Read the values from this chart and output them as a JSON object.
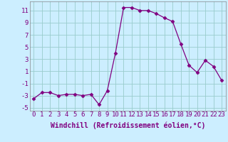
{
  "x": [
    0,
    1,
    2,
    3,
    4,
    5,
    6,
    7,
    8,
    9,
    10,
    11,
    12,
    13,
    14,
    15,
    16,
    17,
    18,
    19,
    20,
    21,
    22,
    23
  ],
  "y": [
    -3.5,
    -2.5,
    -2.5,
    -3.0,
    -2.8,
    -2.8,
    -3.0,
    -2.8,
    -4.5,
    -2.2,
    4.0,
    11.5,
    11.5,
    11.0,
    11.0,
    10.5,
    9.8,
    9.2,
    5.5,
    2.0,
    0.8,
    2.8,
    1.8,
    -0.5
  ],
  "line_color": "#800080",
  "marker": "D",
  "marker_size": 2.5,
  "background_color": "#cceeff",
  "grid_color": "#99cccc",
  "xlabel": "Windchill (Refroidissement éolien,°C)",
  "xlabel_fontsize": 7,
  "tick_fontsize": 6.5,
  "xlim": [
    -0.5,
    23.5
  ],
  "ylim": [
    -5.5,
    12.5
  ],
  "yticks": [
    -5,
    -3,
    -1,
    1,
    3,
    5,
    7,
    9,
    11
  ],
  "xticks": [
    0,
    1,
    2,
    3,
    4,
    5,
    6,
    7,
    8,
    9,
    10,
    11,
    12,
    13,
    14,
    15,
    16,
    17,
    18,
    19,
    20,
    21,
    22,
    23
  ]
}
